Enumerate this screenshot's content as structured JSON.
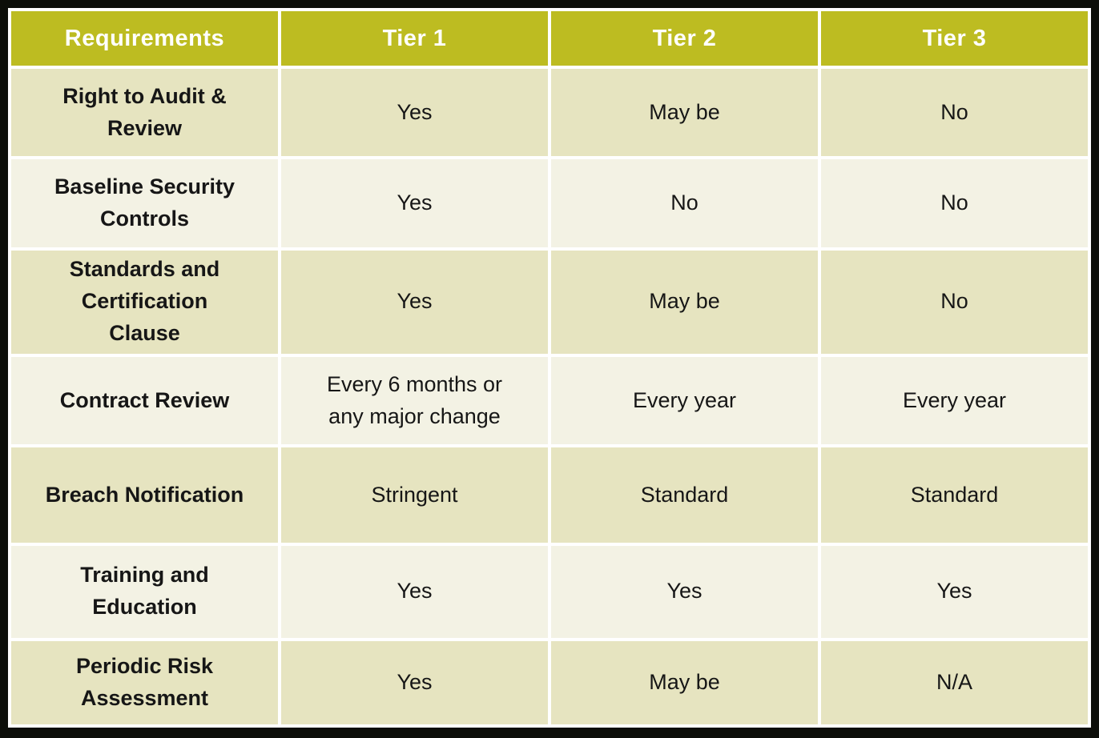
{
  "colors": {
    "header_bg": "#bdbc21",
    "row_dark_bg": "#e6e4c0",
    "row_light_bg": "#f3f2e4",
    "grid_line": "#ffffff",
    "outer_frame": "#0c0e09",
    "header_text": "#ffffff",
    "body_text": "#161616"
  },
  "table": {
    "columns": [
      "Requirements",
      "Tier 1",
      "Tier 2",
      "Tier 3"
    ],
    "rows": [
      [
        "Right to Audit &\nReview",
        "Yes",
        "May be",
        "No"
      ],
      [
        "Baseline Security\nControls",
        "Yes",
        "No",
        "No"
      ],
      [
        "Standards and\nCertification\nClause",
        "Yes",
        "May be",
        "No"
      ],
      [
        "Contract Review",
        "Every 6 months or\nany major change",
        "Every year",
        "Every year"
      ],
      [
        "Breach Notification",
        "Stringent",
        "Standard",
        "Standard"
      ],
      [
        "Training and\nEducation",
        "Yes",
        "Yes",
        "Yes"
      ],
      [
        "Periodic Risk\nAssessment",
        "Yes",
        "May be",
        "N/A"
      ]
    ]
  },
  "chart_data": {
    "type": "table",
    "title": "",
    "columns": [
      "Requirements",
      "Tier 1",
      "Tier 2",
      "Tier 3"
    ],
    "rows": [
      {
        "requirement": "Right to Audit & Review",
        "tier1": "Yes",
        "tier2": "May be",
        "tier3": "No"
      },
      {
        "requirement": "Baseline Security Controls",
        "tier1": "Yes",
        "tier2": "No",
        "tier3": "No"
      },
      {
        "requirement": "Standards and Certification Clause",
        "tier1": "Yes",
        "tier2": "May be",
        "tier3": "No"
      },
      {
        "requirement": "Contract Review",
        "tier1": "Every 6 months or any major change",
        "tier2": "Every year",
        "tier3": "Every year"
      },
      {
        "requirement": "Breach Notification",
        "tier1": "Stringent",
        "tier2": "Standard",
        "tier3": "Standard"
      },
      {
        "requirement": "Training and Education",
        "tier1": "Yes",
        "tier2": "Yes",
        "tier3": "Yes"
      },
      {
        "requirement": "Periodic Risk Assessment",
        "tier1": "Yes",
        "tier2": "May be",
        "tier3": "N/A"
      }
    ]
  }
}
